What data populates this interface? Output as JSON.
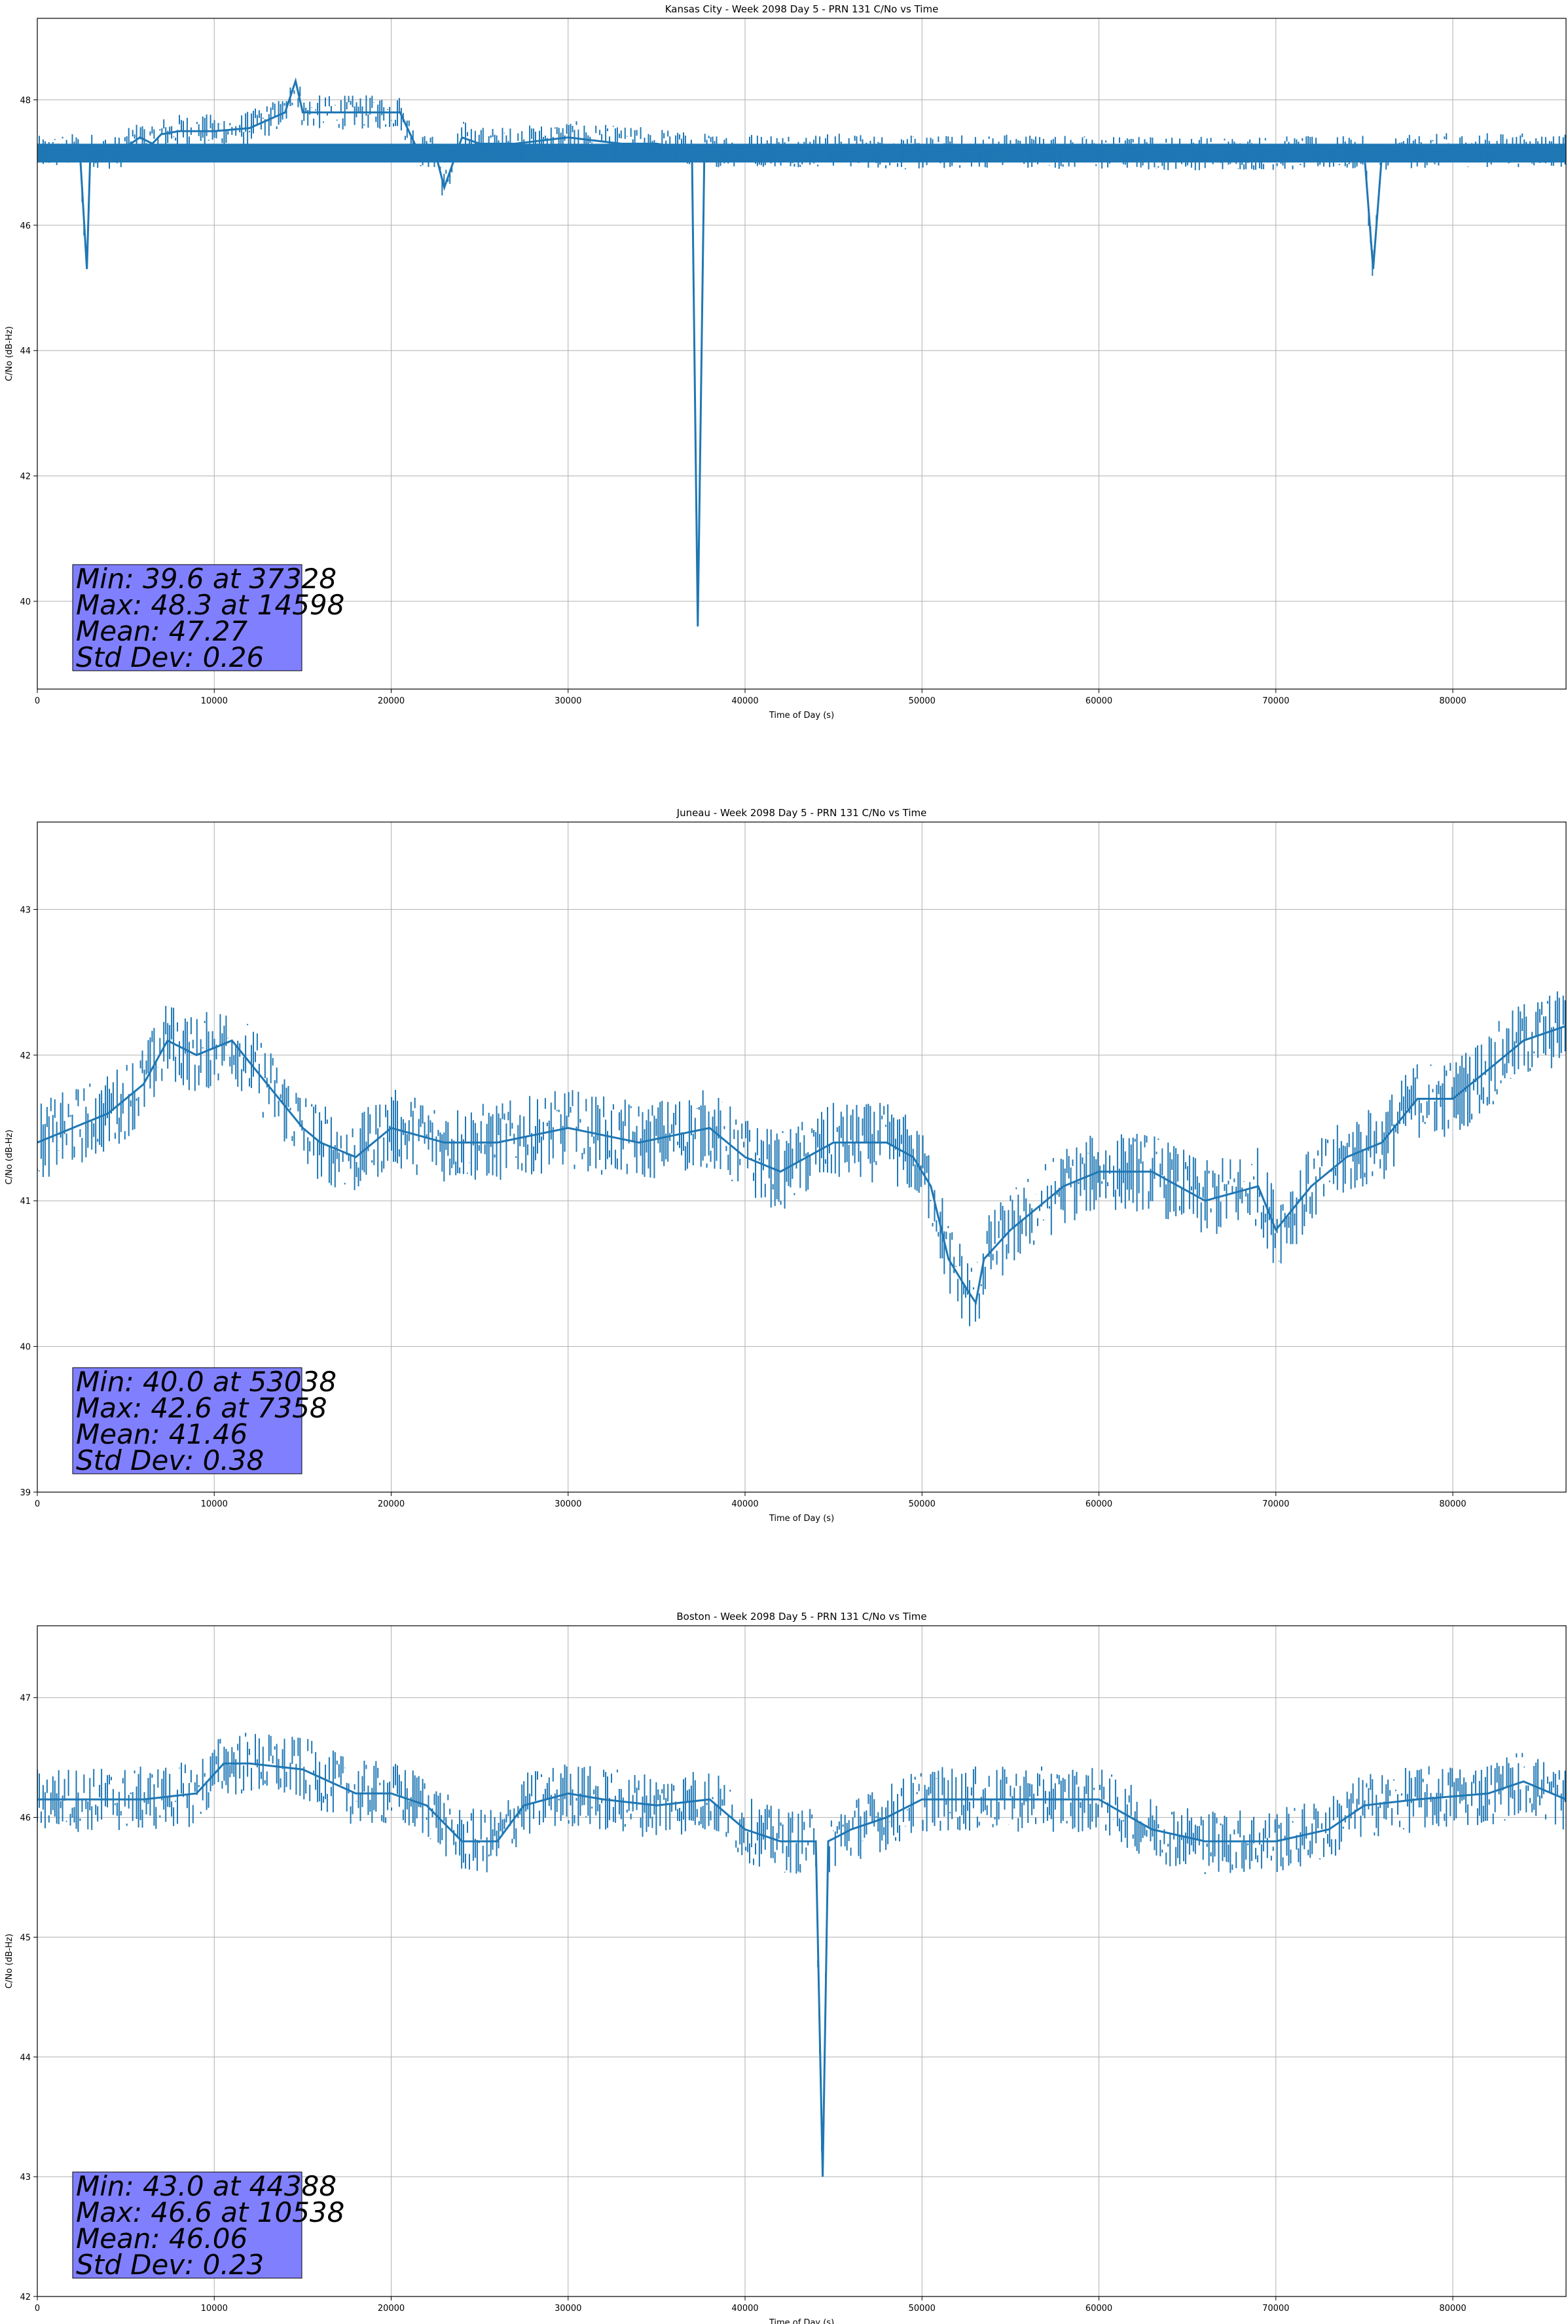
{
  "chart_data": [
    {
      "type": "line",
      "title": "Kansas City - Week 2098 Day 5 - PRN 131 C/No vs Time",
      "xlabel": "Time of Day (s)",
      "ylabel": "C/No (dB-Hz)",
      "xlim": [
        0,
        86400
      ],
      "ylim": [
        38.6,
        49.3
      ],
      "xticks": [
        0,
        10000,
        20000,
        30000,
        40000,
        50000,
        60000,
        70000,
        80000
      ],
      "yticks": [
        40,
        42,
        44,
        46,
        48
      ],
      "grid": true,
      "color": "#1f77b4",
      "baseline": {
        "low": 47.0,
        "high": 47.3
      },
      "series": [
        {
          "x": [
            0,
            2400,
            2800,
            3000,
            4500,
            5800,
            6500,
            7000,
            8000,
            10000,
            12000,
            14000,
            14598,
            15000,
            17000,
            19000,
            20500,
            21500,
            22500,
            23000,
            24000,
            25000,
            27000,
            30000,
            33000,
            35000,
            37000,
            37328,
            37700,
            40000,
            45000,
            50000,
            55000,
            60000,
            65000,
            70000,
            75000,
            75500,
            76000,
            80000,
            85000,
            86400
          ],
          "y": [
            47.15,
            47.2,
            45.3,
            47.2,
            47.15,
            47.4,
            47.3,
            47.45,
            47.5,
            47.5,
            47.55,
            47.8,
            48.3,
            47.8,
            47.8,
            47.8,
            47.8,
            47.2,
            47.15,
            46.6,
            47.4,
            47.3,
            47.3,
            47.4,
            47.3,
            47.3,
            47.2,
            39.6,
            47.2,
            47.2,
            47.2,
            47.15,
            47.2,
            47.15,
            47.15,
            47.15,
            47.15,
            45.3,
            47.15,
            47.2,
            47.2,
            47.2
          ]
        }
      ],
      "stats_box": [
        "Min: 39.6 at 37328",
        "Max: 48.3 at 14598",
        "Mean: 47.27",
        "Std Dev: 0.26"
      ]
    },
    {
      "type": "line",
      "title": "Juneau - Week 2098 Day 5 - PRN 131 C/No vs Time",
      "xlabel": "Time of Day (s)",
      "ylabel": "C/No (dB-Hz)",
      "xlim": [
        0,
        86400
      ],
      "ylim": [
        39.0,
        43.6
      ],
      "xticks": [
        0,
        10000,
        20000,
        30000,
        40000,
        50000,
        60000,
        70000,
        80000
      ],
      "yticks": [
        39,
        40,
        41,
        42,
        43
      ],
      "grid": true,
      "color": "#1f77b4",
      "baseline": null,
      "series": [
        {
          "x": [
            0,
            2000,
            4000,
            6000,
            7358,
            9000,
            11000,
            13000,
            15000,
            16000,
            18000,
            20000,
            23000,
            26000,
            30000,
            34000,
            38000,
            40000,
            42000,
            45000,
            48000,
            49500,
            50500,
            51500,
            52500,
            53038,
            53500,
            55000,
            58000,
            60000,
            63000,
            66000,
            69000,
            70000,
            72000,
            74000,
            76000,
            78000,
            80000,
            82000,
            84000,
            86400
          ],
          "y": [
            41.4,
            41.5,
            41.6,
            41.8,
            42.1,
            42.0,
            42.1,
            41.8,
            41.5,
            41.4,
            41.3,
            41.5,
            41.4,
            41.4,
            41.5,
            41.4,
            41.5,
            41.3,
            41.2,
            41.4,
            41.4,
            41.3,
            41.1,
            40.6,
            40.4,
            40.3,
            40.6,
            40.8,
            41.1,
            41.2,
            41.2,
            41.0,
            41.1,
            40.8,
            41.1,
            41.3,
            41.4,
            41.7,
            41.7,
            41.9,
            42.1,
            42.2
          ]
        }
      ],
      "stats_box": [
        "Min: 40.0 at 53038",
        "Max: 42.6 at 7358",
        "Mean: 41.46",
        "Std Dev: 0.38"
      ]
    },
    {
      "type": "line",
      "title": "Boston - Week 2098 Day 5 - PRN 131 C/No vs Time",
      "xlabel": "Time of Day (s)",
      "ylabel": "C/No (dB-Hz)",
      "xlim": [
        0,
        86400
      ],
      "ylim": [
        42.0,
        47.6
      ],
      "xticks": [
        0,
        10000,
        20000,
        30000,
        40000,
        50000,
        60000,
        70000,
        80000
      ],
      "yticks": [
        42,
        43,
        44,
        45,
        46,
        47
      ],
      "grid": true,
      "color": "#1f77b4",
      "baseline": null,
      "series": [
        {
          "x": [
            0,
            3000,
            6000,
            9000,
            10538,
            12000,
            15000,
            18000,
            20000,
            22000,
            24000,
            26000,
            27500,
            30000,
            32000,
            35000,
            38000,
            40000,
            42000,
            44000,
            44388,
            44700,
            46000,
            48000,
            50000,
            53000,
            56000,
            60000,
            63000,
            66000,
            70000,
            73000,
            75000,
            78000,
            82000,
            84000,
            86400
          ],
          "y": [
            46.15,
            46.15,
            46.15,
            46.2,
            46.45,
            46.45,
            46.4,
            46.2,
            46.2,
            46.1,
            45.8,
            45.8,
            46.1,
            46.2,
            46.15,
            46.1,
            46.15,
            45.9,
            45.8,
            45.8,
            43.0,
            45.8,
            45.9,
            46.0,
            46.15,
            46.15,
            46.15,
            46.15,
            45.9,
            45.8,
            45.8,
            45.9,
            46.1,
            46.15,
            46.2,
            46.3,
            46.15
          ]
        }
      ],
      "stats_box": [
        "Min: 43.0 at 44388",
        "Max: 46.6 at 10538",
        "Mean: 46.06",
        "Std Dev: 0.23"
      ]
    }
  ]
}
